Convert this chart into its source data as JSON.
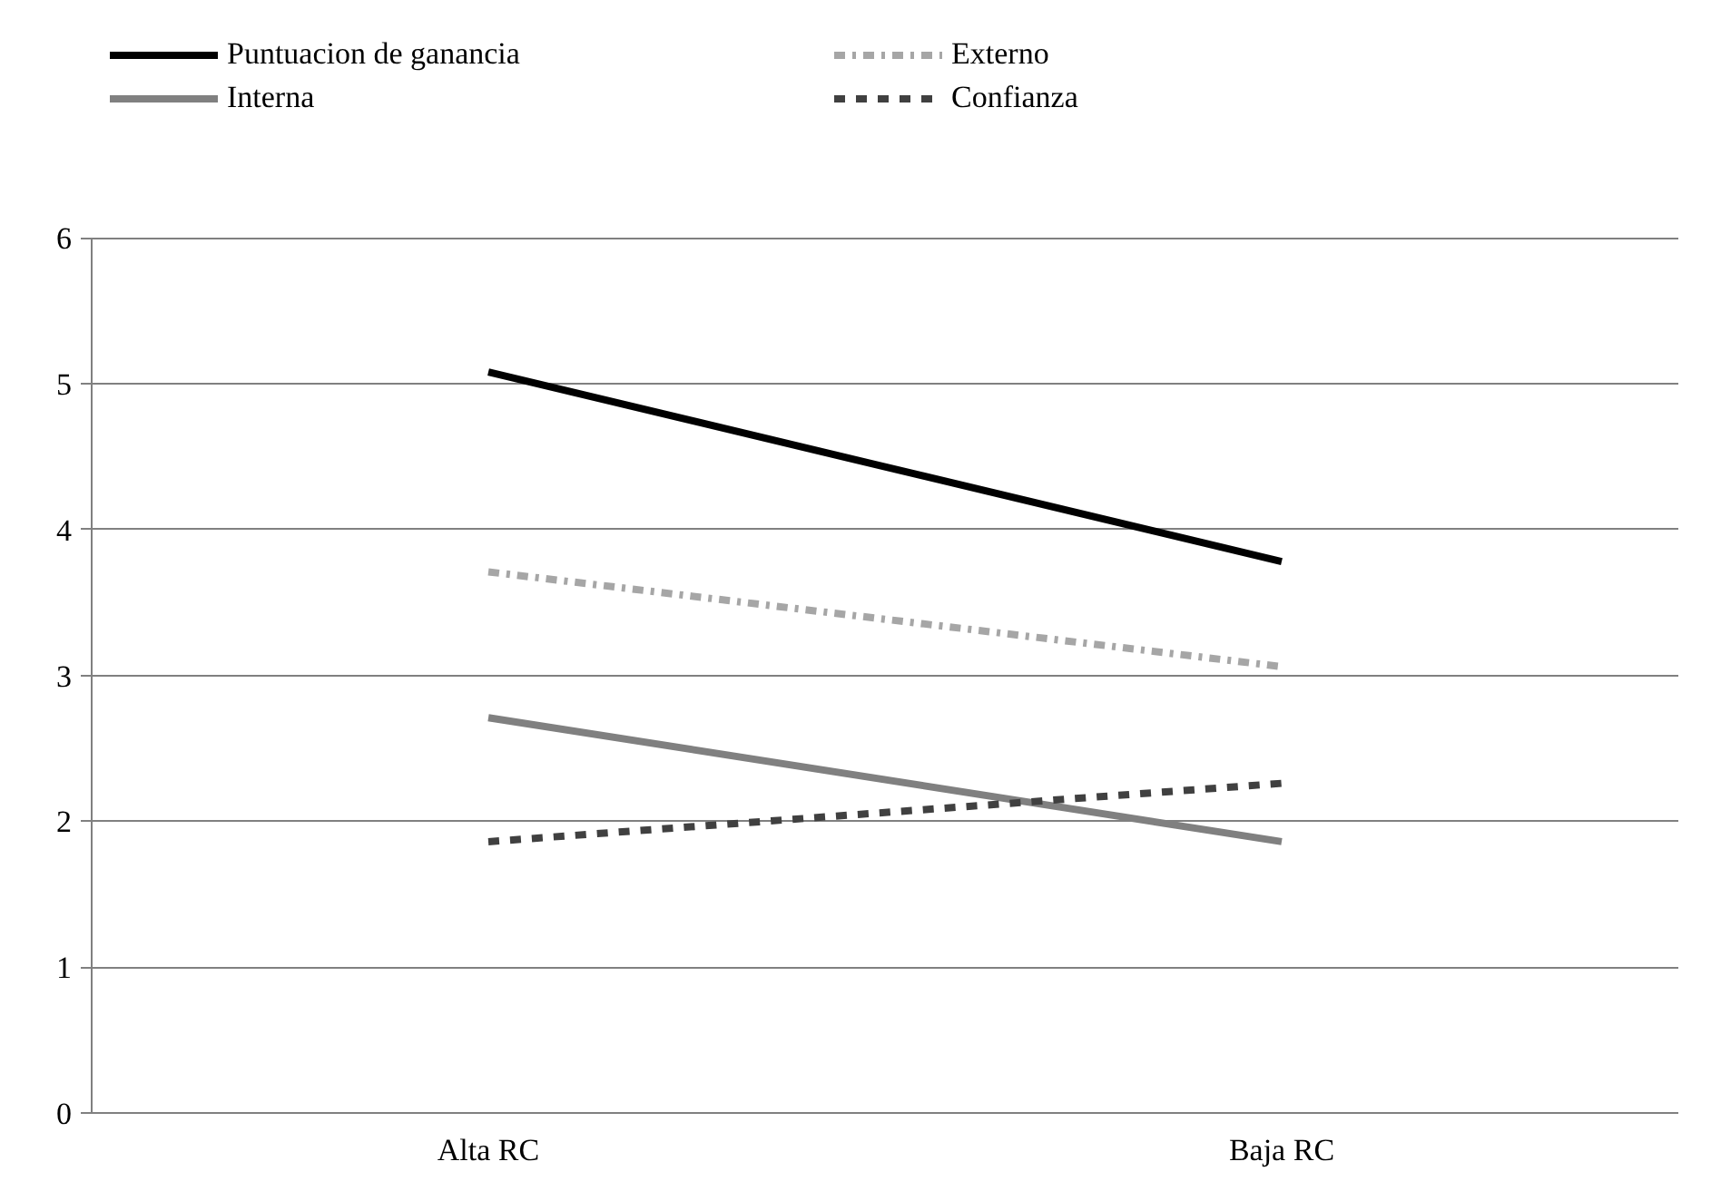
{
  "chart_data": {
    "type": "line",
    "categories": [
      "Alta RC",
      "Baja RC"
    ],
    "ylim": [
      0,
      6
    ],
    "yticks": [
      0,
      1,
      2,
      3,
      4,
      5,
      6
    ],
    "grid": "y",
    "legend": "top",
    "series": [
      {
        "name": "Puntuacion de ganancia",
        "color": "#000000",
        "values": [
          5.08,
          3.78
        ],
        "line_style": "solid"
      },
      {
        "name": "Externo",
        "color": "#a6a6a6",
        "values": [
          3.71,
          3.06
        ],
        "line_style": "dashdot"
      },
      {
        "name": "Interna",
        "color": "#808080",
        "values": [
          2.71,
          1.86
        ],
        "line_style": "solid"
      },
      {
        "name": "Confianza",
        "color": "#404040",
        "values": [
          1.86,
          2.26
        ],
        "line_style": "dashed"
      }
    ]
  }
}
